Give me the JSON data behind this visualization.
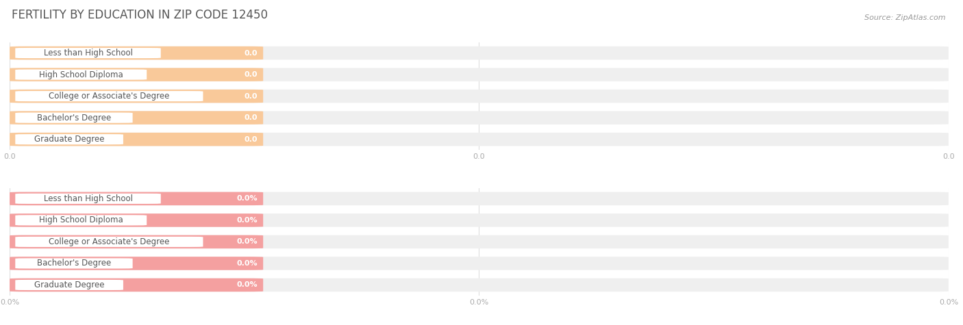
{
  "title": "FERTILITY BY EDUCATION IN ZIP CODE 12450",
  "source": "Source: ZipAtlas.com",
  "categories": [
    "Less than High School",
    "High School Diploma",
    "College or Associate's Degree",
    "Bachelor's Degree",
    "Graduate Degree"
  ],
  "top_bar_color": "#F9C99A",
  "bottom_bar_color": "#F4A0A0",
  "bar_bg_color": "#EFEFEF",
  "background_color": "#FFFFFF",
  "title_color": "#555555",
  "label_color": "#555555",
  "tick_color": "#aaaaaa",
  "grid_color": "#dddddd",
  "figsize": [
    14.06,
    4.75
  ],
  "dpi": 100,
  "title_fontsize": 12,
  "label_fontsize": 8.5,
  "value_fontsize": 8,
  "tick_fontsize": 8,
  "source_fontsize": 8
}
